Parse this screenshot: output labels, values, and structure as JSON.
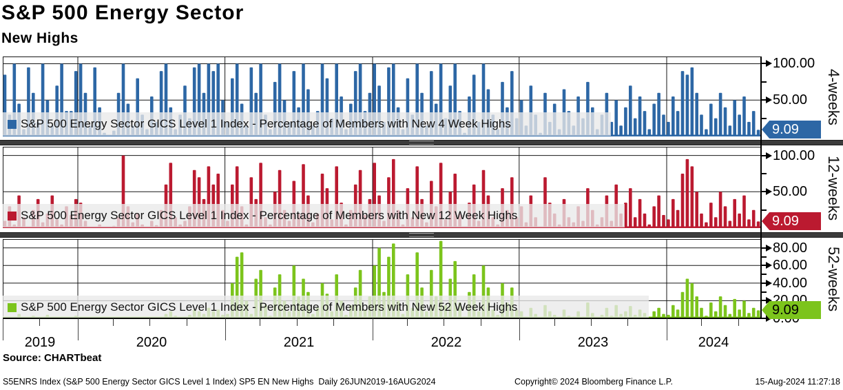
{
  "header": {
    "title": "S&P 500 Energy Sector",
    "subtitle": "New Highs"
  },
  "source_line": "Source: CHARTbeat",
  "footer": {
    "left": "S5ENRS Index (S&P 500 Energy Sector GICS Level 1 Index) SP5 EN New Highs  Daily 26JUN2019-16AUG2024",
    "center": "Copyright© 2024 Bloomberg Finance L.P.",
    "right": "15-Aug-2024 11:27:18"
  },
  "x_axis": {
    "years": [
      "2019",
      "2020",
      "2021",
      "2022",
      "2023",
      "2024"
    ],
    "start": "26JUN2019",
    "end": "16AUG2024",
    "frequency": "Daily"
  },
  "chart_data": [
    {
      "type": "bar",
      "panel_label": "4-weeks",
      "legend": "S&P 500 Energy Sector GICS Level 1 Index - Percentage of Members with New 4 Week Highs",
      "color": "#2d67a5",
      "ylim": [
        0,
        110
      ],
      "yticks": [
        {
          "value": 100,
          "label": "100.00"
        },
        {
          "value": 50,
          "label": "50.00"
        }
      ],
      "minor_yticks": [
        75,
        25
      ],
      "last_value": 9.09,
      "last_value_label": "9.09",
      "values": [
        85,
        30,
        100,
        45,
        10,
        95,
        60,
        20,
        100,
        50,
        15,
        70,
        100,
        35,
        35,
        90,
        100,
        60,
        15,
        95,
        40,
        5,
        2,
        8,
        60,
        100,
        45,
        15,
        80,
        30,
        10,
        55,
        20,
        90,
        100,
        40,
        10,
        30,
        70,
        25,
        95,
        100,
        60,
        100,
        90,
        100,
        50,
        20,
        80,
        100,
        45,
        15,
        95,
        60,
        100,
        30,
        10,
        75,
        100,
        50,
        20,
        90,
        40,
        100,
        65,
        15,
        35,
        100,
        80,
        25,
        100,
        55,
        10,
        45,
        90,
        100,
        35,
        60,
        100,
        70,
        20,
        95,
        100,
        40,
        10,
        80,
        30,
        100,
        60,
        15,
        90,
        45,
        100,
        25,
        70,
        100,
        35,
        5,
        55,
        85,
        20,
        100,
        65,
        30,
        10,
        75,
        40,
        90,
        25,
        50,
        15,
        70,
        30,
        5,
        60,
        20,
        45,
        10,
        65,
        35,
        15,
        55,
        25,
        75,
        40,
        10,
        30,
        60,
        20,
        50,
        15,
        40,
        70,
        25,
        55,
        35,
        10,
        45,
        60,
        30,
        20,
        55,
        35,
        90,
        85,
        95,
        60,
        30,
        10,
        45,
        25,
        60,
        40,
        15,
        50,
        30,
        55,
        20,
        35,
        9.09
      ]
    },
    {
      "type": "bar",
      "panel_label": "12-weeks",
      "legend": "S&P 500 Energy Sector GICS Level 1 Index - Percentage of Members with New 12 Week Highs",
      "color": "#bb1a30",
      "ylim": [
        0,
        112
      ],
      "yticks": [
        {
          "value": 100,
          "label": "100.00"
        },
        {
          "value": 50,
          "label": "50.00"
        }
      ],
      "minor_yticks": [
        75,
        25
      ],
      "last_value": 9.09,
      "last_value_label": "9.09",
      "values": [
        10,
        30,
        5,
        45,
        15,
        2,
        25,
        40,
        8,
        20,
        45,
        12,
        5,
        30,
        18,
        40,
        35,
        10,
        2,
        0,
        5,
        1,
        0,
        3,
        15,
        100,
        30,
        8,
        20,
        5,
        2,
        10,
        4,
        25,
        60,
        90,
        15,
        5,
        10,
        30,
        80,
        70,
        40,
        85,
        60,
        75,
        25,
        10,
        60,
        85,
        30,
        5,
        70,
        40,
        90,
        15,
        5,
        50,
        80,
        25,
        10,
        65,
        20,
        88,
        45,
        8,
        20,
        75,
        55,
        12,
        85,
        35,
        5,
        25,
        60,
        80,
        18,
        40,
        90,
        45,
        10,
        70,
        95,
        25,
        5,
        55,
        15,
        85,
        40,
        8,
        65,
        30,
        90,
        12,
        50,
        75,
        20,
        2,
        35,
        60,
        10,
        80,
        45,
        15,
        5,
        55,
        25,
        70,
        15,
        30,
        8,
        45,
        15,
        2,
        70,
        35,
        20,
        5,
        40,
        15,
        8,
        30,
        10,
        55,
        25,
        5,
        15,
        45,
        10,
        60,
        20,
        35,
        55,
        15,
        40,
        20,
        5,
        30,
        45,
        18,
        12,
        40,
        25,
        75,
        95,
        85,
        50,
        20,
        8,
        35,
        15,
        50,
        30,
        10,
        40,
        20,
        45,
        12,
        25,
        9.09
      ]
    },
    {
      "type": "bar",
      "panel_label": "52-weeks",
      "legend": "S&P 500 Energy Sector GICS Level 1 Index - Percentage of Members with New 52 Week Highs",
      "color": "#7cc41c",
      "ylim": [
        0,
        90
      ],
      "yticks": [
        {
          "value": 80,
          "label": "80.00"
        },
        {
          "value": 60,
          "label": "60.00"
        },
        {
          "value": 40,
          "label": "40.00"
        },
        {
          "value": 20,
          "label": "20.00"
        },
        {
          "value": 0,
          "label": "0.00"
        }
      ],
      "minor_yticks": [
        70,
        50,
        30,
        10
      ],
      "last_value": 9.09,
      "last_value_label": "9.09",
      "values": [
        0,
        2,
        0,
        5,
        1,
        0,
        3,
        0,
        0,
        4,
        1,
        0,
        2,
        0,
        1,
        3,
        2,
        0,
        0,
        0,
        0,
        0,
        0,
        0,
        1,
        0,
        0,
        0,
        0,
        0,
        0,
        0,
        0,
        2,
        5,
        8,
        3,
        0,
        1,
        4,
        10,
        8,
        5,
        12,
        8,
        10,
        4,
        5,
        40,
        70,
        75,
        20,
        5,
        45,
        55,
        15,
        3,
        35,
        50,
        20,
        8,
        60,
        25,
        45,
        30,
        5,
        12,
        40,
        28,
        8,
        50,
        20,
        4,
        15,
        35,
        55,
        10,
        25,
        60,
        80,
        30,
        70,
        85,
        20,
        5,
        50,
        12,
        75,
        35,
        8,
        55,
        25,
        88,
        15,
        45,
        65,
        18,
        2,
        30,
        50,
        8,
        60,
        35,
        10,
        4,
        40,
        18,
        35,
        10,
        8,
        2,
        12,
        5,
        0,
        15,
        8,
        4,
        1,
        10,
        3,
        2,
        8,
        2,
        18,
        6,
        1,
        4,
        12,
        3,
        15,
        5,
        8,
        14,
        4,
        10,
        6,
        1,
        8,
        12,
        5,
        4,
        15,
        10,
        30,
        45,
        40,
        25,
        12,
        3,
        18,
        8,
        25,
        15,
        5,
        22,
        10,
        20,
        6,
        12,
        9.09
      ]
    }
  ]
}
